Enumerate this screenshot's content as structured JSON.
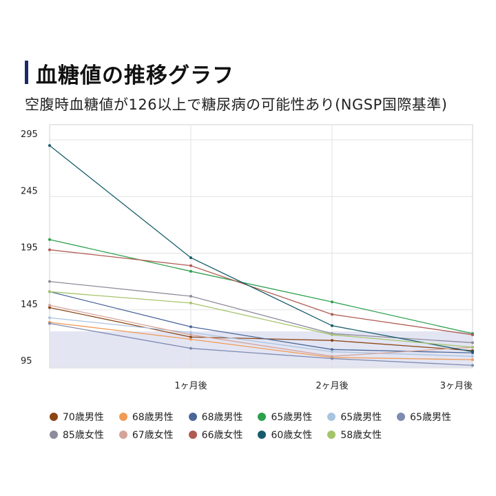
{
  "header": {
    "title": "血糖値の推移グラフ",
    "subtitle": "空腹時血糖値が126以上で糖尿病の可能性あり(NGSP国際基準)"
  },
  "chart_data": {
    "type": "line",
    "x": [
      "",
      "1ヶ月後",
      "2ヶ月後",
      "3ヶ月後"
    ],
    "ylim": [
      95,
      295
    ],
    "yticks": [
      95,
      145,
      195,
      245,
      295
    ],
    "shaded_band": [
      95,
      126
    ],
    "grid": true,
    "series": [
      {
        "name": "70歳男性",
        "color": "#8b4513",
        "values": [
          147,
          121,
          118,
          109
        ]
      },
      {
        "name": "68歳男性",
        "color": "#f29a55",
        "values": [
          134,
          119,
          103,
          101
        ]
      },
      {
        "name": "68歳男性",
        "color": "#4a6699",
        "values": [
          161,
          130,
          110,
          107
        ]
      },
      {
        "name": "65歳男性",
        "color": "#2ca04c",
        "values": [
          207,
          179,
          152,
          124
        ]
      },
      {
        "name": "65歳男性",
        "color": "#a9c4df",
        "values": [
          138,
          125,
          108,
          104
        ]
      },
      {
        "name": "65歳男性",
        "color": "#7f8ab0",
        "values": [
          133,
          111,
          102,
          96
        ]
      },
      {
        "name": "85歳女性",
        "color": "#8e8b9c",
        "values": [
          170,
          157,
          124,
          116
        ]
      },
      {
        "name": "67歳女性",
        "color": "#d4a39a",
        "values": [
          149,
          123,
          104,
          112
        ]
      },
      {
        "name": "66歳女性",
        "color": "#b05a52",
        "values": [
          198,
          184,
          141,
          123
        ]
      },
      {
        "name": "60歳女性",
        "color": "#155c6a",
        "values": [
          290,
          191,
          131,
          108
        ]
      },
      {
        "name": "58歳女性",
        "color": "#a5c46a",
        "values": [
          161,
          151,
          123,
          112
        ]
      }
    ]
  }
}
